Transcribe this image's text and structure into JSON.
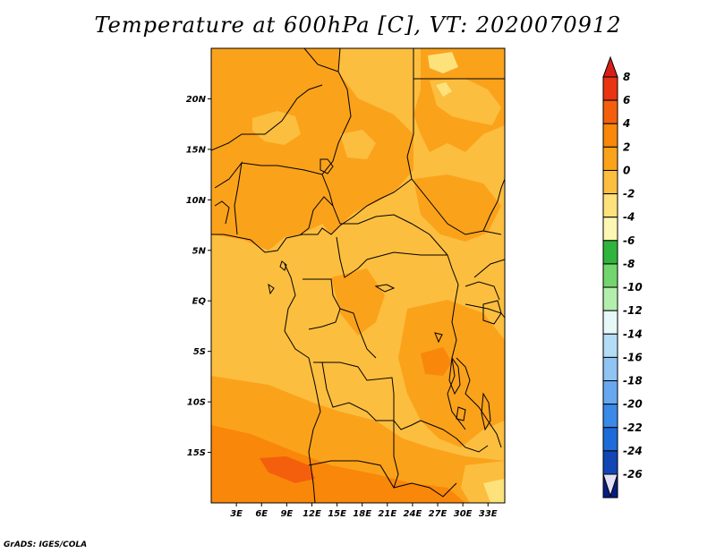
{
  "title": "Temperature at 600hPa [C], VT: 2020070912",
  "credit": "GrADS: IGES/COLA",
  "map": {
    "lat_labels": [
      "20N",
      "15N",
      "10N",
      "5N",
      "EQ",
      "5S",
      "10S",
      "15S"
    ],
    "lon_labels": [
      "3E",
      "6E",
      "9E",
      "12E",
      "15E",
      "18E",
      "21E",
      "24E",
      "27E",
      "30E",
      "33E"
    ],
    "lat_range": [
      -20,
      25
    ],
    "lon_range": [
      0,
      35
    ]
  },
  "colorbar": {
    "levels": [
      "8",
      "6",
      "4",
      "2",
      "0",
      "-2",
      "-4",
      "-6",
      "-8",
      "-10",
      "-12",
      "-14",
      "-16",
      "-18",
      "-20",
      "-22",
      "-24",
      "-26"
    ],
    "colors": [
      "#e83411",
      "#f45f0e",
      "#f8870a",
      "#fba21b",
      "#fcbe3f",
      "#fde27c",
      "#fdf7b4",
      "#2fb43d",
      "#73d56d",
      "#b4eeae",
      "#e7f8f9",
      "#b4dcf6",
      "#90c4f3",
      "#67a8f0",
      "#3b89e8",
      "#1d6bd9",
      "#1146b4",
      "#061d80",
      "#0b0a55"
    ],
    "top_arrow_color": "#d42016",
    "bottom_arrow_color": "#e3e0f8"
  }
}
